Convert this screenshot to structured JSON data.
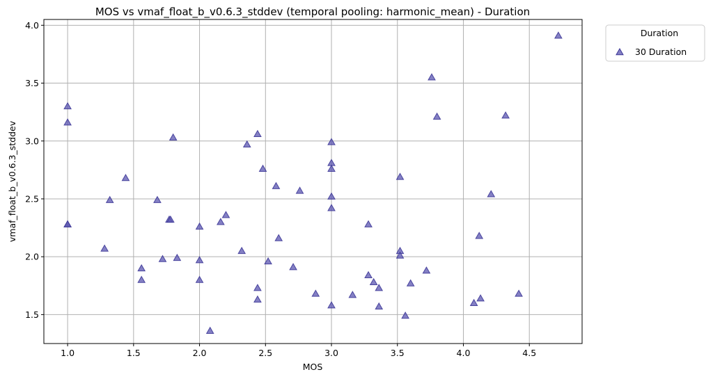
{
  "chart_data": {
    "type": "scatter",
    "title": "MOS vs vmaf_float_b_v0.6.3_stddev (temporal pooling: harmonic_mean) - Duration",
    "xlabel": "MOS",
    "ylabel": "vmaf_float_b_v0.6.3_stddev",
    "xlim": [
      0.82,
      4.9
    ],
    "ylim": [
      1.25,
      4.05
    ],
    "xticks": [
      1.0,
      1.5,
      2.0,
      2.5,
      3.0,
      3.5,
      4.0,
      4.5
    ],
    "xtick_labels": [
      "1.0",
      "1.5",
      "2.0",
      "2.5",
      "3.0",
      "3.5",
      "4.0",
      "4.5"
    ],
    "yticks": [
      1.5,
      2.0,
      2.5,
      3.0,
      3.5,
      4.0
    ],
    "ytick_labels": [
      "1.5",
      "2.0",
      "2.5",
      "3.0",
      "3.5",
      "4.0"
    ],
    "grid": true,
    "marker": "triangle",
    "legend": {
      "title": "Duration",
      "placement": "outside-top-right"
    },
    "series": [
      {
        "name": "30 Duration",
        "color": "#5b55b0",
        "points": [
          [
            1.0,
            3.3
          ],
          [
            1.0,
            3.16
          ],
          [
            1.0,
            2.28
          ],
          [
            1.0,
            2.28
          ],
          [
            1.28,
            2.07
          ],
          [
            1.32,
            2.49
          ],
          [
            1.44,
            2.68
          ],
          [
            1.56,
            1.9
          ],
          [
            1.56,
            1.8
          ],
          [
            1.68,
            2.49
          ],
          [
            1.72,
            1.98
          ],
          [
            1.77,
            2.32
          ],
          [
            1.78,
            2.32
          ],
          [
            1.8,
            3.03
          ],
          [
            1.83,
            1.99
          ],
          [
            2.0,
            2.26
          ],
          [
            2.0,
            1.97
          ],
          [
            2.0,
            1.8
          ],
          [
            2.08,
            1.36
          ],
          [
            2.16,
            2.3
          ],
          [
            2.2,
            2.36
          ],
          [
            2.32,
            2.05
          ],
          [
            2.36,
            2.97
          ],
          [
            2.44,
            3.06
          ],
          [
            2.44,
            1.73
          ],
          [
            2.44,
            1.63
          ],
          [
            2.48,
            2.76
          ],
          [
            2.52,
            1.96
          ],
          [
            2.58,
            2.61
          ],
          [
            2.6,
            2.16
          ],
          [
            2.71,
            1.91
          ],
          [
            2.76,
            2.57
          ],
          [
            2.88,
            1.68
          ],
          [
            3.0,
            2.99
          ],
          [
            3.0,
            2.81
          ],
          [
            3.0,
            2.76
          ],
          [
            3.0,
            2.52
          ],
          [
            3.0,
            2.42
          ],
          [
            3.0,
            1.58
          ],
          [
            3.16,
            1.67
          ],
          [
            3.28,
            2.28
          ],
          [
            3.28,
            1.84
          ],
          [
            3.32,
            1.78
          ],
          [
            3.36,
            1.73
          ],
          [
            3.36,
            1.57
          ],
          [
            3.52,
            2.69
          ],
          [
            3.52,
            2.05
          ],
          [
            3.52,
            2.01
          ],
          [
            3.56,
            1.49
          ],
          [
            3.6,
            1.77
          ],
          [
            3.72,
            1.88
          ],
          [
            3.76,
            3.55
          ],
          [
            3.8,
            3.21
          ],
          [
            4.08,
            1.6
          ],
          [
            4.12,
            2.18
          ],
          [
            4.13,
            1.64
          ],
          [
            4.21,
            2.54
          ],
          [
            4.32,
            3.22
          ],
          [
            4.42,
            1.68
          ],
          [
            4.72,
            3.91
          ]
        ]
      }
    ]
  }
}
